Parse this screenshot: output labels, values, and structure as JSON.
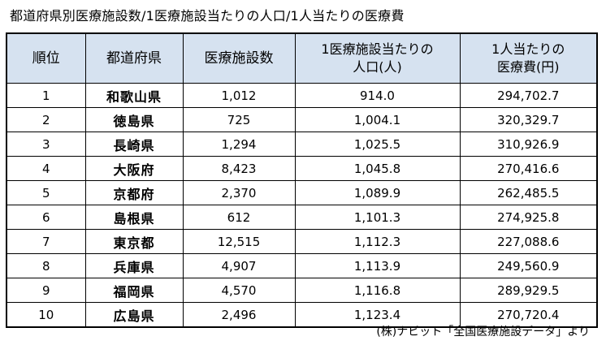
{
  "title": "都道府県別医療施設数/1医療施設当たりの人口/1人当たりの医療費",
  "table": {
    "headers": {
      "rank": "順位",
      "prefecture": "都道府県",
      "facilities": "医療施設数",
      "pop_line1": "1医療施設当たりの",
      "pop_line2": "人口(人)",
      "cost_line1": "1人当たりの",
      "cost_line2": "医療費(円)"
    },
    "rows": [
      {
        "rank": "1",
        "prefecture": "和歌山県",
        "facilities": "1,012",
        "population": "914.0",
        "cost": "294,702.7"
      },
      {
        "rank": "2",
        "prefecture": "徳島県",
        "facilities": "725",
        "population": "1,004.1",
        "cost": "320,329.7"
      },
      {
        "rank": "3",
        "prefecture": "長崎県",
        "facilities": "1,294",
        "population": "1,025.5",
        "cost": "310,926.9"
      },
      {
        "rank": "4",
        "prefecture": "大阪府",
        "facilities": "8,423",
        "population": "1,045.8",
        "cost": "270,416.6"
      },
      {
        "rank": "5",
        "prefecture": "京都府",
        "facilities": "2,370",
        "population": "1,089.9",
        "cost": "262,485.5"
      },
      {
        "rank": "6",
        "prefecture": "島根県",
        "facilities": "612",
        "population": "1,101.3",
        "cost": "274,925.8"
      },
      {
        "rank": "7",
        "prefecture": "東京都",
        "facilities": "12,515",
        "population": "1,112.3",
        "cost": "227,088.6"
      },
      {
        "rank": "8",
        "prefecture": "兵庫県",
        "facilities": "4,907",
        "population": "1,113.9",
        "cost": "249,560.9"
      },
      {
        "rank": "9",
        "prefecture": "福岡県",
        "facilities": "4,570",
        "population": "1,116.8",
        "cost": "289,929.5"
      },
      {
        "rank": "10",
        "prefecture": "広島県",
        "facilities": "2,496",
        "population": "1,123.4",
        "cost": "270,720.4"
      }
    ]
  },
  "source": "(株)ナビット「全国医療施設データ」より",
  "colors": {
    "header_bg": "#d6e2f0",
    "border": "#000000"
  }
}
